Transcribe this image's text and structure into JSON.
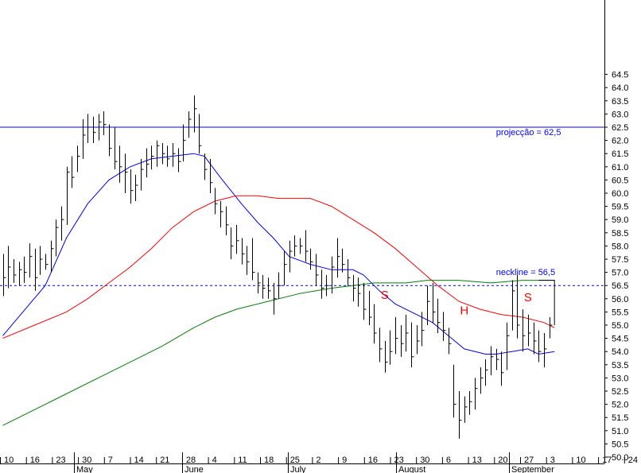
{
  "chart_data": {
    "type": "line",
    "subtype": "ohlc-bars-with-moving-averages",
    "ylim": [
      49.6,
      65.0
    ],
    "yticks": [
      50.0,
      50.5,
      51.0,
      51.5,
      52.0,
      52.5,
      53.0,
      53.5,
      54.0,
      54.5,
      55.0,
      55.5,
      56.0,
      56.5,
      57.0,
      57.5,
      58.0,
      58.5,
      59.0,
      59.5,
      60.0,
      60.5,
      61.0,
      61.5,
      62.0,
      62.5,
      63.0,
      63.5,
      64.0,
      64.5
    ],
    "ytick_labels": [
      "50.0",
      "50.5",
      "51.0",
      "51.5",
      "52.0",
      "52.5",
      "53.0",
      "53.5",
      "54.0",
      "54.5",
      "55.0",
      "55.5",
      "56.0",
      "56.5",
      "57.0",
      "57.5",
      "58.0",
      "58.5",
      "59.0",
      "59.5",
      "60.0",
      "60.5",
      "61.0",
      "61.5",
      "62.0",
      "62.5",
      "63.0",
      "63.5",
      "64.0",
      "64.5"
    ],
    "x_tick_labels": [
      "10",
      "16",
      "23",
      "30",
      "7",
      "14",
      "21",
      "28",
      "4",
      "11",
      "18",
      "25",
      "2",
      "9",
      "16",
      "23",
      "30",
      "6",
      "13",
      "20",
      "27",
      "3",
      "10",
      "17",
      "24"
    ],
    "month_labels": [
      "May",
      "June",
      "July",
      "August",
      "September"
    ],
    "bars": [
      {
        "i": 0,
        "h": 57.7,
        "l": 56.1,
        "c": 56.8
      },
      {
        "i": 1,
        "h": 58.0,
        "l": 56.4,
        "c": 57.2
      },
      {
        "i": 2,
        "h": 57.5,
        "l": 56.6,
        "c": 56.9
      },
      {
        "i": 3,
        "h": 57.4,
        "l": 56.5,
        "c": 57.1
      },
      {
        "i": 4,
        "h": 57.6,
        "l": 56.6,
        "c": 57.0
      },
      {
        "i": 5,
        "h": 58.1,
        "l": 56.8,
        "c": 57.6
      },
      {
        "i": 6,
        "h": 57.9,
        "l": 56.3,
        "c": 56.8
      },
      {
        "i": 7,
        "h": 58.0,
        "l": 56.9,
        "c": 57.5
      },
      {
        "i": 8,
        "h": 57.7,
        "l": 57.1,
        "c": 57.3
      },
      {
        "i": 9,
        "h": 58.2,
        "l": 57.0,
        "c": 57.9
      },
      {
        "i": 10,
        "h": 59.0,
        "l": 57.6,
        "c": 58.7
      },
      {
        "i": 11,
        "h": 59.5,
        "l": 58.2,
        "c": 59.0
      },
      {
        "i": 12,
        "h": 61.0,
        "l": 58.8,
        "c": 60.8
      },
      {
        "i": 13,
        "h": 61.4,
        "l": 60.2,
        "c": 60.6
      },
      {
        "i": 14,
        "h": 61.8,
        "l": 60.8,
        "c": 61.4
      },
      {
        "i": 15,
        "h": 62.8,
        "l": 61.3,
        "c": 62.2
      },
      {
        "i": 16,
        "h": 63.0,
        "l": 61.9,
        "c": 62.5
      },
      {
        "i": 17,
        "h": 62.9,
        "l": 61.9,
        "c": 62.3
      },
      {
        "i": 18,
        "h": 63.0,
        "l": 62.0,
        "c": 62.7
      },
      {
        "i": 19,
        "h": 63.1,
        "l": 62.2,
        "c": 62.6
      },
      {
        "i": 20,
        "h": 62.6,
        "l": 61.4,
        "c": 61.7
      },
      {
        "i": 21,
        "h": 62.5,
        "l": 60.9,
        "c": 61.2
      },
      {
        "i": 22,
        "h": 61.8,
        "l": 60.4,
        "c": 61.0
      },
      {
        "i": 23,
        "h": 61.5,
        "l": 60.0,
        "c": 60.8
      },
      {
        "i": 24,
        "h": 60.9,
        "l": 59.6,
        "c": 60.1
      },
      {
        "i": 25,
        "h": 60.7,
        "l": 59.7,
        "c": 60.3
      },
      {
        "i": 26,
        "h": 61.3,
        "l": 60.1,
        "c": 60.9
      },
      {
        "i": 27,
        "h": 61.7,
        "l": 60.6,
        "c": 61.1
      },
      {
        "i": 28,
        "h": 61.8,
        "l": 60.9,
        "c": 61.4
      },
      {
        "i": 29,
        "h": 62.0,
        "l": 61.0,
        "c": 61.8
      },
      {
        "i": 30,
        "h": 61.9,
        "l": 61.1,
        "c": 61.5
      },
      {
        "i": 31,
        "h": 61.8,
        "l": 61.0,
        "c": 61.3
      },
      {
        "i": 32,
        "h": 61.9,
        "l": 61.0,
        "c": 61.5
      },
      {
        "i": 33,
        "h": 61.7,
        "l": 60.8,
        "c": 61.2
      },
      {
        "i": 34,
        "h": 62.6,
        "l": 61.2,
        "c": 62.0
      },
      {
        "i": 35,
        "h": 63.1,
        "l": 62.1,
        "c": 62.8
      },
      {
        "i": 36,
        "h": 63.7,
        "l": 62.3,
        "c": 63.2
      },
      {
        "i": 37,
        "h": 63.0,
        "l": 61.5,
        "c": 61.8
      },
      {
        "i": 38,
        "h": 61.5,
        "l": 60.5,
        "c": 60.9
      },
      {
        "i": 39,
        "h": 61.3,
        "l": 60.0,
        "c": 60.4
      },
      {
        "i": 40,
        "h": 60.2,
        "l": 59.2,
        "c": 59.6
      },
      {
        "i": 41,
        "h": 59.7,
        "l": 58.7,
        "c": 59.3
      },
      {
        "i": 42,
        "h": 59.5,
        "l": 58.4,
        "c": 58.8
      },
      {
        "i": 43,
        "h": 58.7,
        "l": 57.5,
        "c": 58.0
      },
      {
        "i": 44,
        "h": 58.8,
        "l": 57.7,
        "c": 58.2
      },
      {
        "i": 45,
        "h": 58.3,
        "l": 57.3,
        "c": 57.7
      },
      {
        "i": 46,
        "h": 58.0,
        "l": 56.9,
        "c": 57.4
      },
      {
        "i": 47,
        "h": 58.3,
        "l": 56.7,
        "c": 57.0
      },
      {
        "i": 48,
        "h": 57.0,
        "l": 56.2,
        "c": 56.6
      },
      {
        "i": 49,
        "h": 56.9,
        "l": 56.0,
        "c": 56.4
      },
      {
        "i": 50,
        "h": 56.8,
        "l": 56.0,
        "c": 56.3
      },
      {
        "i": 51,
        "h": 56.6,
        "l": 55.4,
        "c": 56.0
      },
      {
        "i": 52,
        "h": 57.0,
        "l": 56.0,
        "c": 56.5
      },
      {
        "i": 53,
        "h": 57.8,
        "l": 56.5,
        "c": 57.3
      },
      {
        "i": 54,
        "h": 58.2,
        "l": 57.0,
        "c": 57.8
      },
      {
        "i": 55,
        "h": 58.4,
        "l": 57.6,
        "c": 58.0
      },
      {
        "i": 56,
        "h": 58.3,
        "l": 57.7,
        "c": 58.0
      },
      {
        "i": 57,
        "h": 58.6,
        "l": 57.4,
        "c": 57.8
      },
      {
        "i": 58,
        "h": 57.9,
        "l": 57.1,
        "c": 57.4
      },
      {
        "i": 59,
        "h": 57.7,
        "l": 56.5,
        "c": 56.9
      },
      {
        "i": 60,
        "h": 57.1,
        "l": 56.0,
        "c": 56.4
      },
      {
        "i": 61,
        "h": 56.9,
        "l": 56.1,
        "c": 56.5
      },
      {
        "i": 62,
        "h": 57.6,
        "l": 56.2,
        "c": 57.2
      },
      {
        "i": 63,
        "h": 58.3,
        "l": 56.8,
        "c": 57.6
      },
      {
        "i": 64,
        "h": 57.9,
        "l": 57.0,
        "c": 57.3
      },
      {
        "i": 65,
        "h": 57.5,
        "l": 56.5,
        "c": 56.8
      },
      {
        "i": 66,
        "h": 56.9,
        "l": 55.9,
        "c": 56.4
      },
      {
        "i": 67,
        "h": 56.8,
        "l": 55.7,
        "c": 56.2
      },
      {
        "i": 68,
        "h": 56.6,
        "l": 55.2,
        "c": 55.6
      },
      {
        "i": 69,
        "h": 56.3,
        "l": 55.0,
        "c": 55.3
      },
      {
        "i": 70,
        "h": 55.8,
        "l": 54.3,
        "c": 54.7
      },
      {
        "i": 71,
        "h": 54.9,
        "l": 53.6,
        "c": 54.1
      },
      {
        "i": 72,
        "h": 54.4,
        "l": 53.2,
        "c": 53.6
      },
      {
        "i": 73,
        "h": 54.8,
        "l": 53.5,
        "c": 54.0
      },
      {
        "i": 74,
        "h": 55.3,
        "l": 53.9,
        "c": 54.5
      },
      {
        "i": 75,
        "h": 55.0,
        "l": 53.8,
        "c": 54.3
      },
      {
        "i": 76,
        "h": 55.4,
        "l": 54.0,
        "c": 54.7
      },
      {
        "i": 77,
        "h": 55.1,
        "l": 53.4,
        "c": 53.8
      },
      {
        "i": 78,
        "h": 55.0,
        "l": 53.9,
        "c": 54.4
      },
      {
        "i": 79,
        "h": 55.5,
        "l": 54.2,
        "c": 54.8
      },
      {
        "i": 80,
        "h": 56.5,
        "l": 55.0,
        "c": 55.9
      },
      {
        "i": 81,
        "h": 56.6,
        "l": 55.1,
        "c": 55.5
      },
      {
        "i": 82,
        "h": 56.0,
        "l": 54.7,
        "c": 55.1
      },
      {
        "i": 83,
        "h": 55.5,
        "l": 54.4,
        "c": 54.8
      },
      {
        "i": 84,
        "h": 54.9,
        "l": 53.9,
        "c": 54.3
      },
      {
        "i": 85,
        "h": 53.5,
        "l": 51.5,
        "c": 52.0
      },
      {
        "i": 86,
        "h": 52.5,
        "l": 50.7,
        "c": 51.4
      },
      {
        "i": 87,
        "h": 52.3,
        "l": 51.3,
        "c": 51.9
      },
      {
        "i": 88,
        "h": 52.5,
        "l": 51.6,
        "c": 52.1
      },
      {
        "i": 89,
        "h": 53.0,
        "l": 51.8,
        "c": 52.6
      },
      {
        "i": 90,
        "h": 53.4,
        "l": 52.4,
        "c": 53.0
      },
      {
        "i": 91,
        "h": 53.7,
        "l": 52.7,
        "c": 53.3
      },
      {
        "i": 92,
        "h": 54.2,
        "l": 53.1,
        "c": 53.8
      },
      {
        "i": 93,
        "h": 54.1,
        "l": 53.3,
        "c": 53.7
      },
      {
        "i": 94,
        "h": 54.0,
        "l": 52.7,
        "c": 53.2
      },
      {
        "i": 95,
        "h": 55.1,
        "l": 53.3,
        "c": 54.6
      },
      {
        "i": 96,
        "h": 56.7,
        "l": 54.8,
        "c": 56.3
      },
      {
        "i": 97,
        "h": 56.9,
        "l": 54.5,
        "c": 55.0
      },
      {
        "i": 98,
        "h": 55.6,
        "l": 54.0,
        "c": 54.6
      },
      {
        "i": 99,
        "h": 55.4,
        "l": 54.2,
        "c": 54.7
      },
      {
        "i": 100,
        "h": 55.1,
        "l": 53.9,
        "c": 54.4
      },
      {
        "i": 101,
        "h": 54.8,
        "l": 53.6,
        "c": 54.0
      },
      {
        "i": 102,
        "h": 54.7,
        "l": 53.4,
        "c": 54.1
      },
      {
        "i": 103,
        "h": 55.3,
        "l": 54.5,
        "c": 55.0
      }
    ],
    "series": [
      {
        "color": "#0000ff",
        "points": [
          [
            0,
            54.6
          ],
          [
            8,
            56.5
          ],
          [
            12,
            58.3
          ],
          [
            16,
            59.6
          ],
          [
            20,
            60.5
          ],
          [
            24,
            61.0
          ],
          [
            28,
            61.3
          ],
          [
            32,
            61.4
          ],
          [
            36,
            61.5
          ],
          [
            38,
            61.4
          ],
          [
            41,
            60.6
          ],
          [
            45,
            59.6
          ],
          [
            48,
            58.9
          ],
          [
            51,
            58.3
          ],
          [
            54,
            57.6
          ],
          [
            58,
            57.3
          ],
          [
            62,
            57.1
          ],
          [
            66,
            57.1
          ],
          [
            68,
            56.9
          ],
          [
            71,
            56.3
          ],
          [
            74,
            55.8
          ],
          [
            78,
            55.4
          ],
          [
            81,
            55.1
          ],
          [
            84,
            54.6
          ],
          [
            87,
            54.1
          ],
          [
            91,
            53.9
          ],
          [
            93,
            53.9
          ],
          [
            96,
            54.0
          ],
          [
            99,
            54.1
          ],
          [
            101,
            53.9
          ],
          [
            104,
            54.0
          ]
        ]
      },
      {
        "color": "#ff0000",
        "points": [
          [
            0,
            54.5
          ],
          [
            6,
            55.0
          ],
          [
            12,
            55.5
          ],
          [
            16,
            56.0
          ],
          [
            20,
            56.6
          ],
          [
            24,
            57.2
          ],
          [
            28,
            57.9
          ],
          [
            32,
            58.7
          ],
          [
            36,
            59.3
          ],
          [
            40,
            59.7
          ],
          [
            44,
            59.9
          ],
          [
            48,
            59.9
          ],
          [
            52,
            59.8
          ],
          [
            58,
            59.8
          ],
          [
            62,
            59.5
          ],
          [
            66,
            59.0
          ],
          [
            70,
            58.5
          ],
          [
            74,
            57.9
          ],
          [
            78,
            57.2
          ],
          [
            82,
            56.5
          ],
          [
            86,
            55.9
          ],
          [
            90,
            55.6
          ],
          [
            94,
            55.4
          ],
          [
            98,
            55.3
          ],
          [
            102,
            55.1
          ],
          [
            104,
            54.9
          ]
        ]
      },
      {
        "color": "#008000",
        "points": [
          [
            0,
            51.2
          ],
          [
            10,
            52.2
          ],
          [
            20,
            53.2
          ],
          [
            30,
            54.2
          ],
          [
            36,
            54.9
          ],
          [
            40,
            55.3
          ],
          [
            44,
            55.6
          ],
          [
            50,
            55.9
          ],
          [
            56,
            56.2
          ],
          [
            62,
            56.4
          ],
          [
            66,
            56.5
          ],
          [
            70,
            56.6
          ],
          [
            76,
            56.6
          ],
          [
            80,
            56.7
          ],
          [
            86,
            56.7
          ],
          [
            92,
            56.6
          ],
          [
            98,
            56.7
          ],
          [
            104,
            56.7
          ]
        ]
      }
    ],
    "hlines": [
      {
        "value": 62.5,
        "color": "#0000ff",
        "style": "solid"
      },
      {
        "value": 56.5,
        "color": "#0000ff",
        "style": "dashed"
      }
    ],
    "annotations": [
      {
        "text": "projecção = 62,5",
        "color": "#0000ff",
        "x": 93,
        "y": 62.2
      },
      {
        "text": "neckline = 56,5",
        "color": "#0000ff",
        "x": 93,
        "y": 56.9
      },
      {
        "text": "S",
        "color": "#ff0000",
        "x": 72,
        "y": 56.0
      },
      {
        "text": "H",
        "color": "#ff0000",
        "x": 87,
        "y": 55.4
      },
      {
        "text": "S",
        "color": "#ff0000",
        "x": 99,
        "y": 55.9
      }
    ],
    "grid": false
  }
}
